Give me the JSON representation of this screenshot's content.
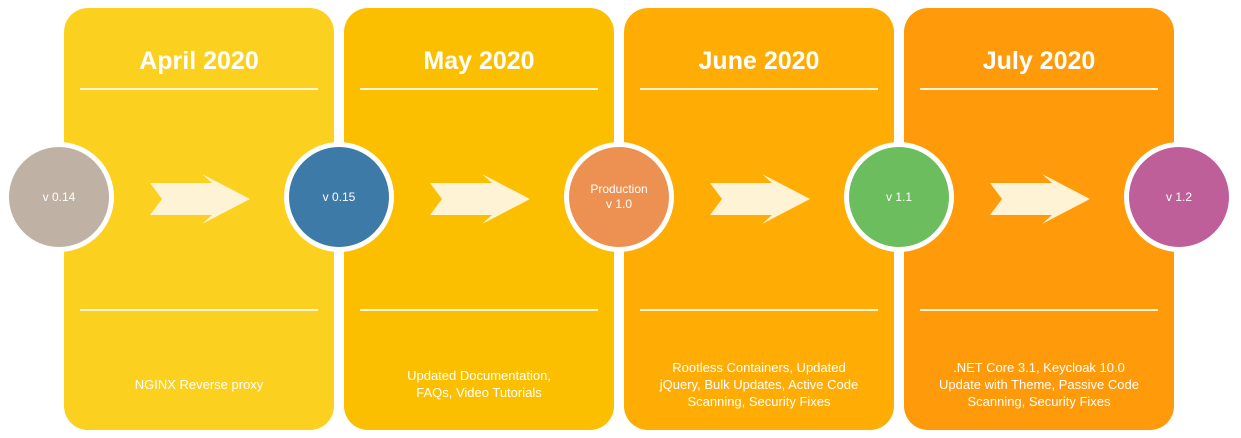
{
  "timeline": {
    "cards": [
      {
        "title": "April 2020",
        "description": "NGINX Reverse proxy",
        "color": "#fcd01f"
      },
      {
        "title": "May 2020",
        "description": "Updated Documentation,\nFAQs, Video Tutorials",
        "color": "#fcbf00"
      },
      {
        "title": "June 2020",
        "description": "Rootless Containers, Updated\njQuery, Bulk Updates, Active Code\nScanning, Security Fixes",
        "color": "#ffad05"
      },
      {
        "title": "July 2020",
        "description": ".NET Core 3.1, Keycloak 10.0\nUpdate with Theme, Passive Code\nScanning, Security Fixes",
        "color": "#ff9a0a"
      }
    ],
    "milestones": [
      {
        "label": "v 0.14",
        "color": "#bfb1a4"
      },
      {
        "label": "v 0.15",
        "color": "#3e7aa7"
      },
      {
        "label": "Production\nv 1.0",
        "color": "#ec9151"
      },
      {
        "label": "v 1.1",
        "color": "#6cbd5e"
      },
      {
        "label": "v 1.2",
        "color": "#bf5f9a"
      }
    ],
    "arrow_icon": "arrow-right-icon",
    "arrow_color": "#fff3d6"
  }
}
